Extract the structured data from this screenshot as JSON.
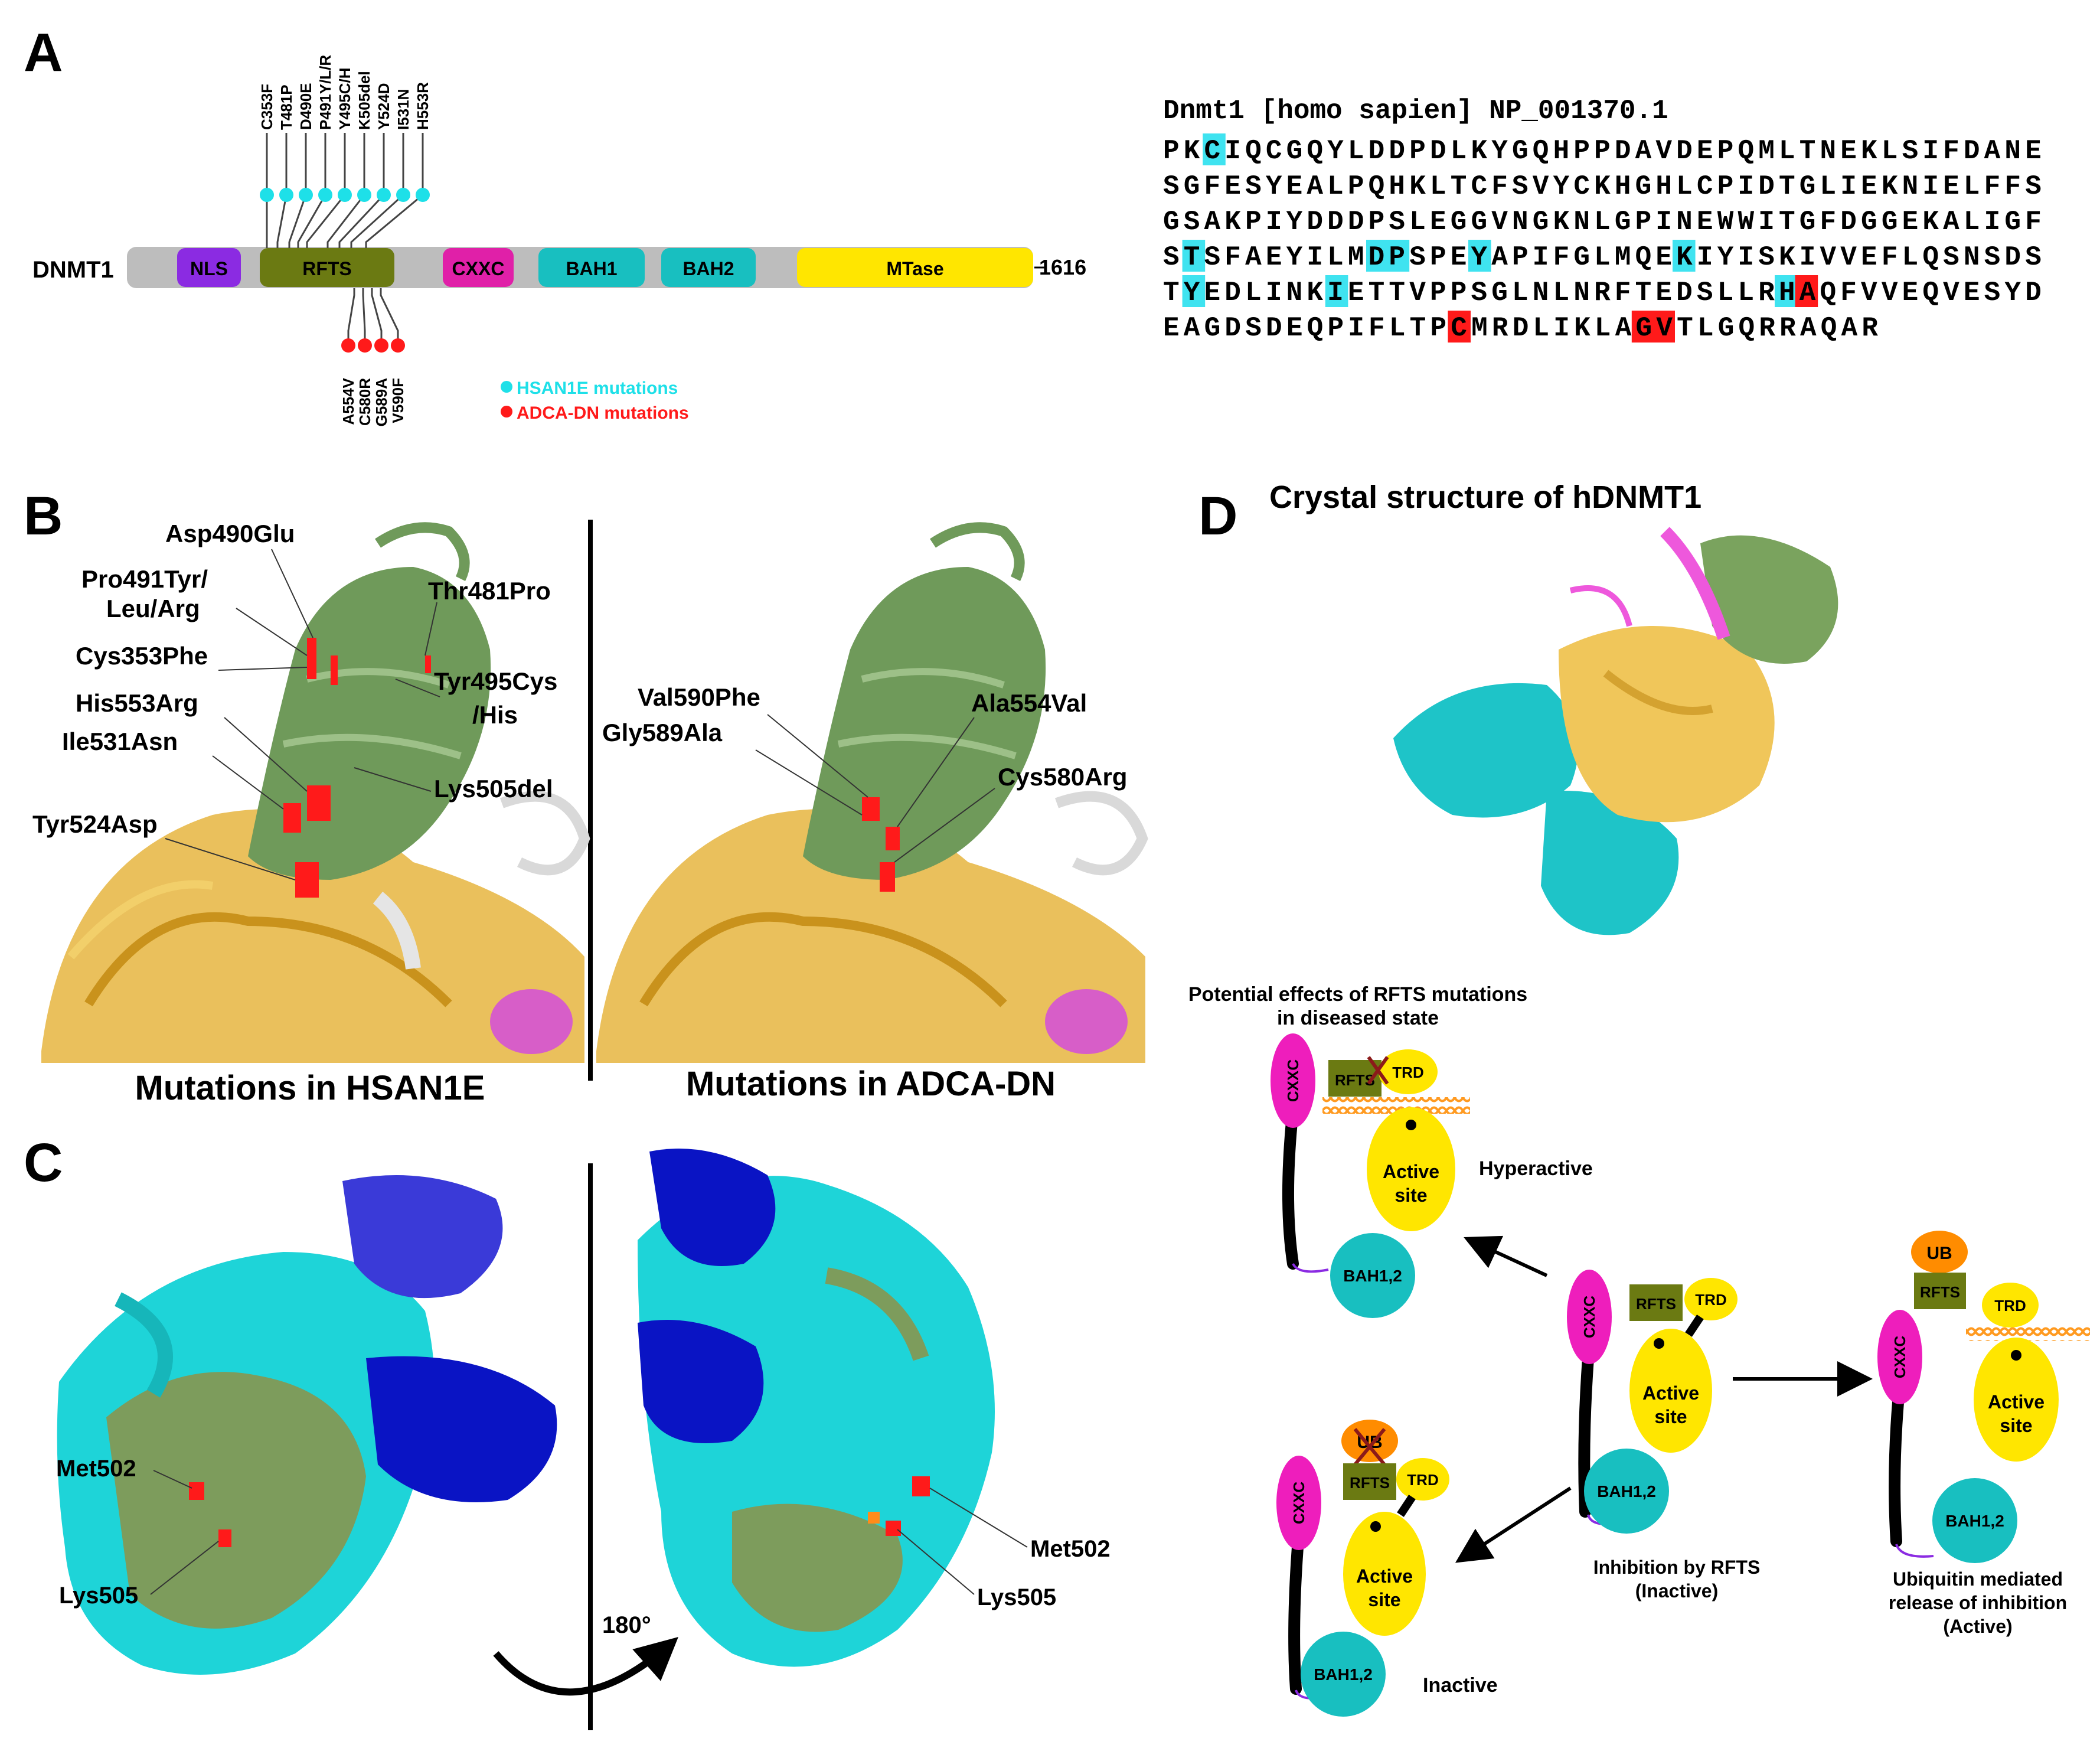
{
  "panels": {
    "a": "A",
    "b": "B",
    "c": "C",
    "d": "D"
  },
  "domain_map": {
    "protein": "DNMT1",
    "length_label": "1616",
    "domains": [
      {
        "name": "NLS",
        "color": "#8b2be2"
      },
      {
        "name": "RFTS",
        "color": "#6b7a12"
      },
      {
        "name": "CXXC",
        "color": "#e020a8"
      },
      {
        "name": "BAH1",
        "color": "#18bfc0"
      },
      {
        "name": "BAH2",
        "color": "#18bfc0"
      },
      {
        "name": "MTase",
        "color": "#ffe600"
      }
    ],
    "hsan1e_mutations": [
      "C353F",
      "T481P",
      "D490E",
      "P491Y/L/R",
      "Y495C/H",
      "K505del",
      "Y524D",
      "I531N",
      "H553R"
    ],
    "adcadn_mutations": [
      "A554V",
      "C580R",
      "G589A",
      "V590F"
    ],
    "legend": {
      "hsan1e": "HSAN1E mutations",
      "adcadn": "ADCA-DN mutations",
      "hsan1e_color": "#1ee0e8",
      "adcadn_color": "#ff1a1a"
    }
  },
  "sequence": {
    "header": "Dnmt1 [homo sapien] NP_001370.1",
    "lines": [
      [
        {
          "t": "PK"
        },
        {
          "t": "C",
          "h": "cyan"
        },
        {
          "t": "IQCGQYLDDPDLKYGQHPPDAVDEPQMLTNEKLSIFDANE"
        }
      ],
      [
        {
          "t": "SGFESYEALPQHKLTCFSVYCKHGHLCPIDTGLIEKNIELFFS"
        }
      ],
      [
        {
          "t": "GSAKPIYDDDPSLEGGVNGKNLGPINEWWITGFDGGEKALIGF"
        }
      ],
      [
        {
          "t": "S"
        },
        {
          "t": "T",
          "h": "cyan"
        },
        {
          "t": "SFAEYILM"
        },
        {
          "t": "DP",
          "h": "cyan"
        },
        {
          "t": "SPE"
        },
        {
          "t": "Y",
          "h": "cyan"
        },
        {
          "t": "APIFGLMQE"
        },
        {
          "t": "K",
          "h": "cyan"
        },
        {
          "t": "IYISKIVVEFLQSNSDS"
        }
      ],
      [
        {
          "t": "T"
        },
        {
          "t": "Y",
          "h": "cyan"
        },
        {
          "t": "EDLINK"
        },
        {
          "t": "I",
          "h": "cyan"
        },
        {
          "t": "ETTVPPSGLNLNRFTEDSLLR"
        },
        {
          "t": "H",
          "h": "cyan"
        },
        {
          "t": "A",
          "h": "red"
        },
        {
          "t": "QFVVEQVESYD"
        }
      ],
      [
        {
          "t": "EAGDSDEQPIFLTP"
        },
        {
          "t": "C",
          "h": "red"
        },
        {
          "t": "MRDLIKLA"
        },
        {
          "t": "GV",
          "h": "red"
        },
        {
          "t": "TLGQRRAQAR"
        }
      ]
    ]
  },
  "panel_b": {
    "left_caption": "Mutations in HSAN1E",
    "right_caption": "Mutations in ADCA-DN",
    "left_labels": [
      "Asp490Glu",
      "Pro491Tyr/",
      "Leu/Arg",
      "Thr481Pro",
      "Cys353Phe",
      "Tyr495Cys",
      "/His",
      "His553Arg",
      "Ile531Asn",
      "Lys505del",
      "Tyr524Asp"
    ],
    "right_labels": [
      "Val590Phe",
      "Ala554Val",
      "Gly589Ala",
      "Cys580Arg"
    ]
  },
  "panel_c": {
    "left_labels": [
      "Met502",
      "Lys505"
    ],
    "right_labels": [
      "Met502",
      "Lys505"
    ],
    "rotation": "180°"
  },
  "panel_d": {
    "title": "Crystal structure of hDNMT1",
    "subtitle_1": "Potential effects of RFTS mutations",
    "subtitle_2": "in diseased state",
    "hyperactive": "Hyperactive",
    "inactive": "Inactive",
    "center_caption_1": "Inhibition by RFTS",
    "center_caption_2": "(Inactive)",
    "right_caption_1": "Ubiquitin mediated",
    "right_caption_2": "release of inhibition",
    "right_caption_3": "(Active)",
    "cxxc": "CXXC",
    "rfts": "RFTS",
    "trd": "TRD",
    "active_1": "Active",
    "active_2": "site",
    "bah": "BAH1,2",
    "ub": "UB"
  }
}
